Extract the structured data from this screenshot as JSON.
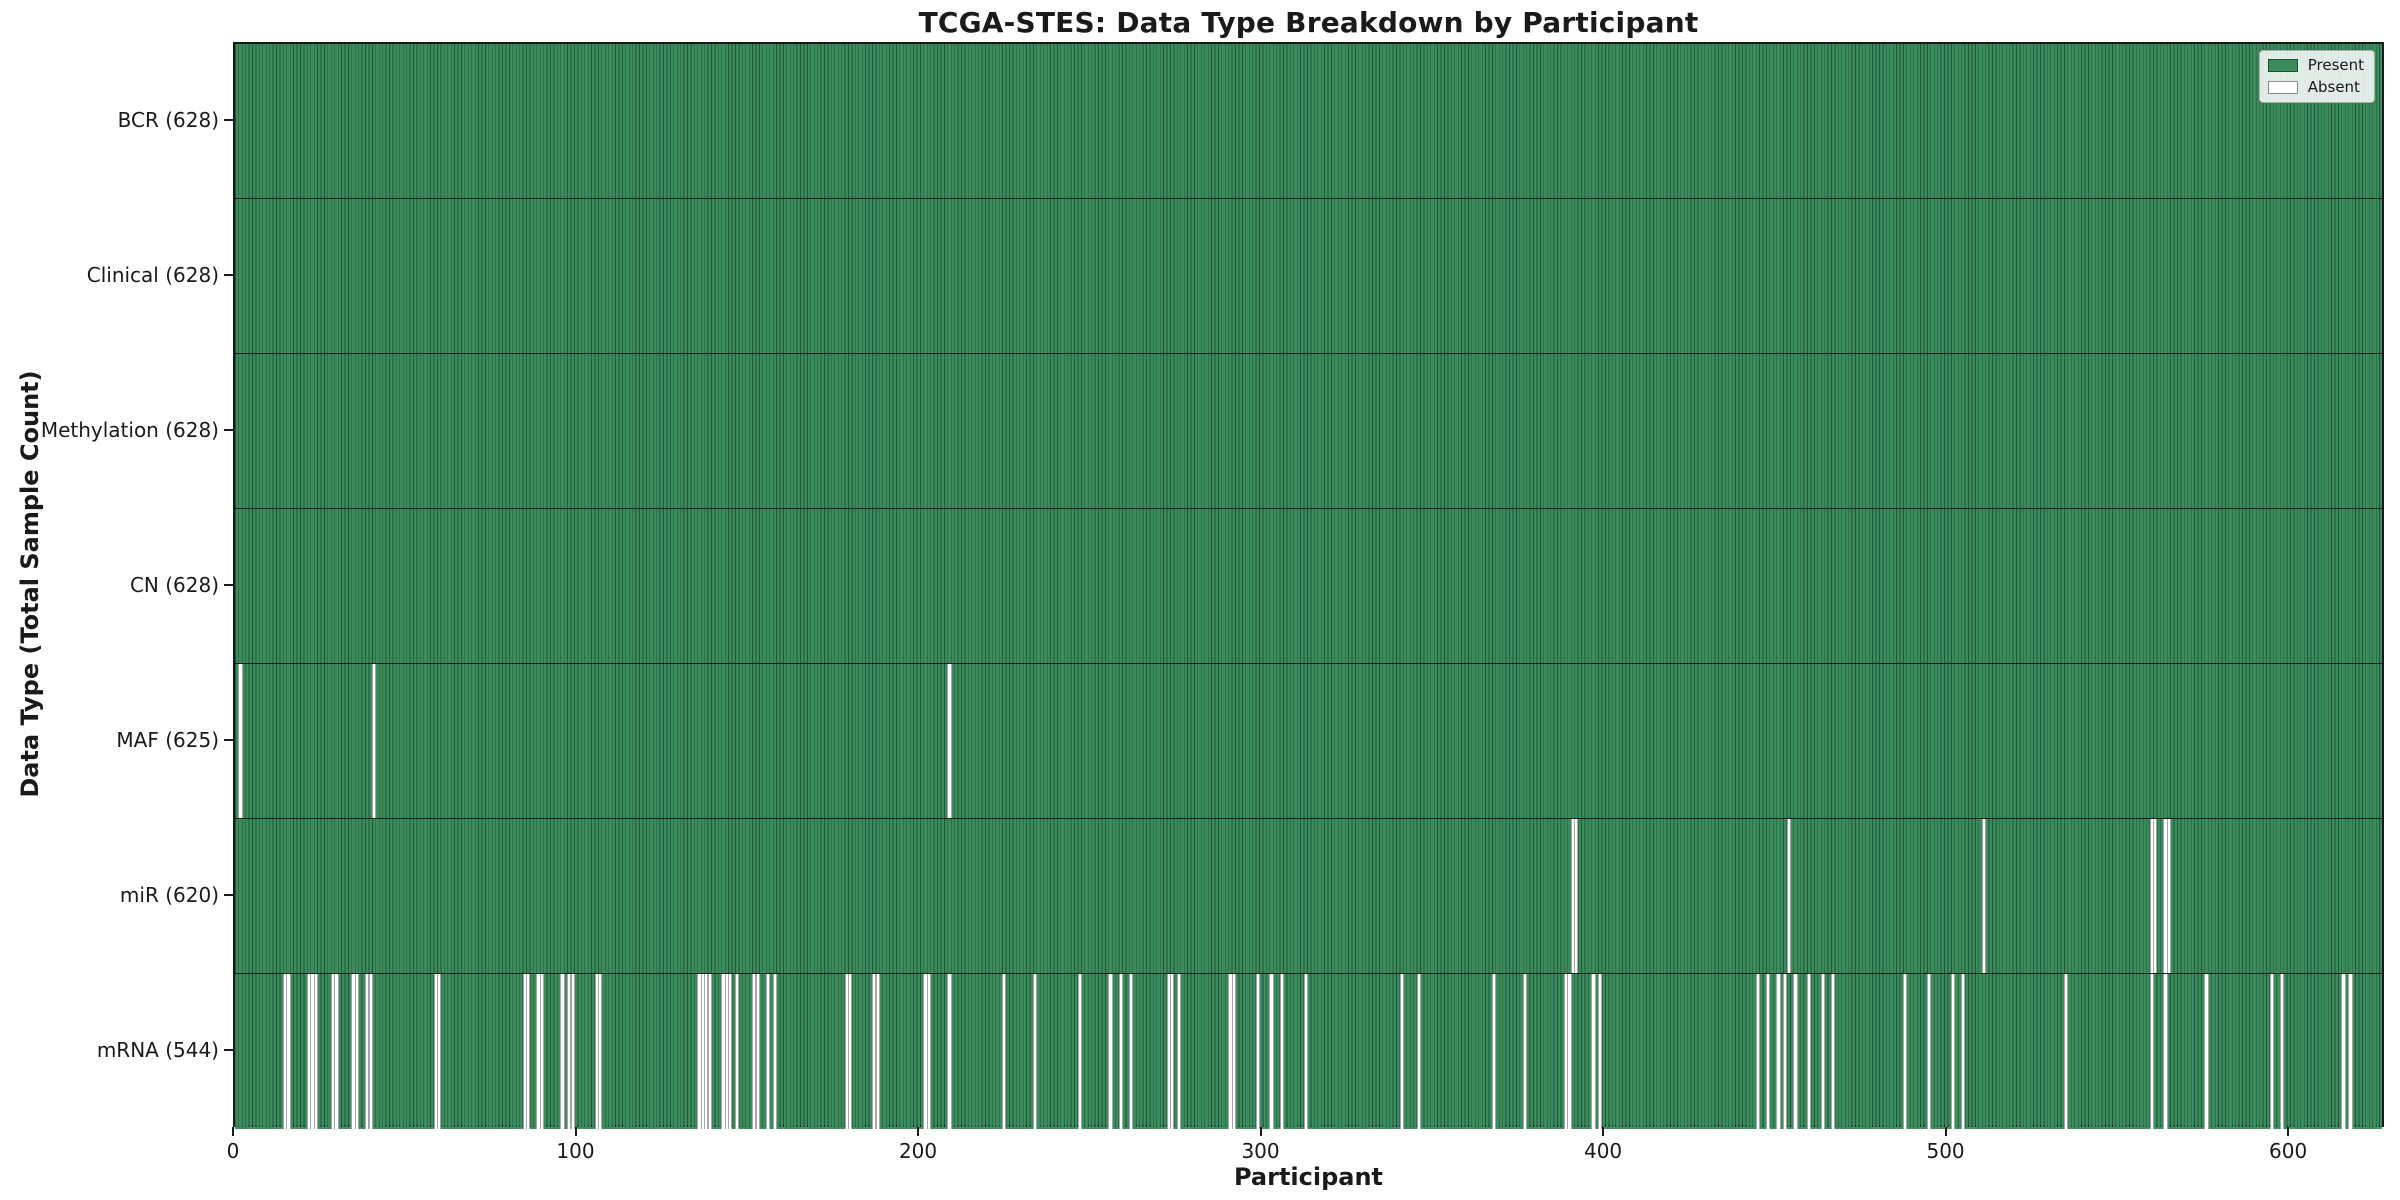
{
  "title": "TCGA-STES: Data Type Breakdown by Participant",
  "xlabel": "Participant",
  "ylabel": "Data Type (Total Sample Count)",
  "legend": {
    "present_label": "Present",
    "absent_label": "Absent"
  },
  "colors": {
    "present": "#3a8c5c",
    "cell_edge": "rgba(10,40,25,0.55)",
    "absent": "#ffffff",
    "axis": "#1a1a1a",
    "legend_background": "rgba(255,255,255,0.85)"
  },
  "chart_data": {
    "type": "heatmap",
    "xlabel": "Participant",
    "ylabel": "Data Type (Total Sample Count)",
    "n_participants": 628,
    "xlim": [
      0,
      628
    ],
    "x_ticks": [
      0,
      100,
      200,
      300,
      400,
      500,
      600
    ],
    "grid": false,
    "legend_position": "upper right",
    "legend_entries": [
      "Present",
      "Absent"
    ],
    "rows": [
      {
        "name": "BCR",
        "label": "BCR (628)",
        "present_count": 628,
        "absent_count": 0,
        "absent_participants": []
      },
      {
        "name": "Clinical",
        "label": "Clinical (628)",
        "present_count": 628,
        "absent_count": 0,
        "absent_participants": []
      },
      {
        "name": "Methylation",
        "label": "Methylation (628)",
        "present_count": 628,
        "absent_count": 0,
        "absent_participants": []
      },
      {
        "name": "CN",
        "label": "CN (628)",
        "present_count": 628,
        "absent_count": 0,
        "absent_participants": []
      },
      {
        "name": "MAF",
        "label": "MAF (625)",
        "present_count": 625,
        "absent_count": 3,
        "absent_participants": [
          1,
          40,
          208
        ]
      },
      {
        "name": "miR",
        "label": "miR (620)",
        "present_count": 620,
        "absent_count": 8,
        "absent_participants": [
          390,
          391,
          453,
          510,
          559,
          560,
          563,
          564
        ]
      },
      {
        "name": "mRNA",
        "label": "mRNA (544)",
        "present_count": 544,
        "absent_count": 84,
        "absent_participants": [
          14,
          15,
          21,
          22,
          23,
          28,
          29,
          34,
          35,
          38,
          39,
          58,
          59,
          84,
          85,
          88,
          89,
          95,
          97,
          98,
          105,
          106,
          135,
          136,
          137,
          138,
          142,
          143,
          144,
          146,
          151,
          152,
          155,
          157,
          178,
          179,
          186,
          187,
          201,
          202,
          208,
          224,
          233,
          246,
          255,
          258,
          261,
          272,
          273,
          275,
          290,
          291,
          298,
          302,
          305,
          312,
          340,
          345,
          367,
          376,
          388,
          389,
          396,
          398,
          444,
          447,
          450,
          452,
          455,
          459,
          463,
          466,
          487,
          494,
          501,
          504,
          534,
          559,
          563,
          575,
          594,
          597,
          615,
          617
        ]
      }
    ]
  }
}
